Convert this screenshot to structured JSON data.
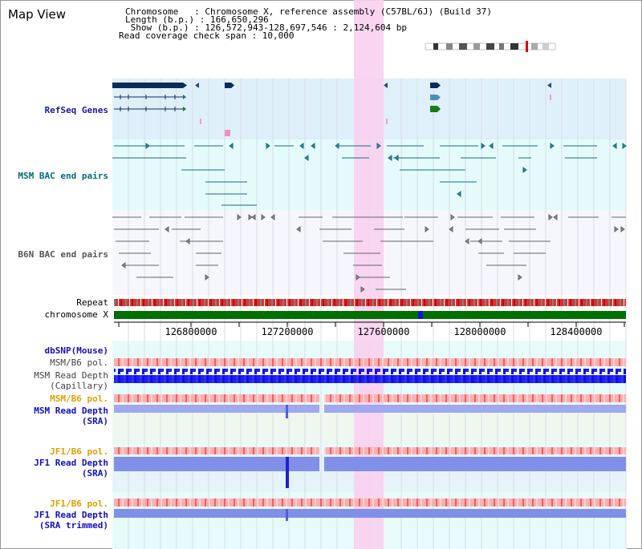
{
  "title": "Map View",
  "info": {
    "line1": "Chromosome   : Chromosome X, reference assembly (C57BL/6J) (Build 37)",
    "line2": "Length (b.p.) : 166,650,296",
    "line3": " Show (b.p.) : 126,572,943-128,697,546 : 2,124,604 bp",
    "line4": "Read coverage check span : 10,000"
  },
  "tracks": {
    "refseq": "RefSeq Genes",
    "msm_bac": "MSM BAC end pairs",
    "b6n_bac": "B6N BAC end pairs",
    "repeat": "Repeat",
    "chromosome": "chromosome X",
    "dbsnp": "dbSNP(Mouse)",
    "msm_b6_pol_1": "MSM/B6 pol.",
    "msm_depth_cap_1": "MSM Read Depth",
    "msm_depth_cap_2": "(Capillary)",
    "msm_b6_pol_2": "MSM/B6 pol.",
    "msm_depth_sra_1": "MSM Read Depth",
    "msm_depth_sra_2": "(SRA)",
    "jf1_b6_pol_1": "JF1/B6 pol.",
    "jf1_depth_sra_1": "JF1 Read Depth",
    "jf1_depth_sra_2": "(SRA)",
    "jf1_b6_pol_2": "JF1/B6 pol.",
    "jf1_depth_trim_1": "JF1 Read Depth",
    "jf1_depth_trim_2": "(SRA trimmed)"
  },
  "axis": {
    "ticks": [
      "126800000",
      "127200000",
      "127600000",
      "128000000",
      "128400000"
    ]
  },
  "colors": {
    "refseq_label": "#1a1aa0",
    "msm_bac_label": "#006a80",
    "b6n_bac_label": "#555555",
    "orange_label": "#e0a000",
    "blue_label": "#1010c0",
    "highlight": "#f8d0f0",
    "chromosome_bar": "#007000"
  }
}
